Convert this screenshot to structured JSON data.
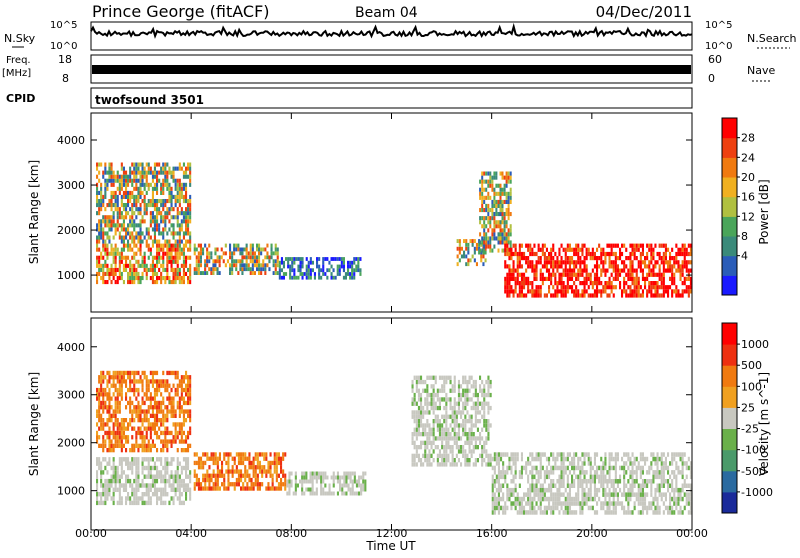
{
  "header": {
    "station": "Prince George (fitACF)",
    "beam": "Beam 04",
    "date": "04/Dec/2011"
  },
  "strip_labels": {
    "nsky": "N.Sky",
    "nsky_ticks": [
      "10^5",
      "10^0"
    ],
    "nsearch": "N.Search",
    "freq": "Freq.",
    "freq_unit": "[MHz]",
    "freq_ticks": [
      "18",
      "8"
    ],
    "nave": "Nave",
    "nave_ticks": [
      "60",
      "0"
    ],
    "cpid": "CPID",
    "cpid_value": "twofsound 3501"
  },
  "time_axis": {
    "label": "Time UT",
    "ticks": [
      "00:00",
      "04:00",
      "08:00",
      "12:00",
      "16:00",
      "20:00",
      "00:00"
    ]
  },
  "chart_data": [
    {
      "type": "heatmap",
      "name": "power",
      "xlabel": "Time UT",
      "ylabel": "Slant Range [km]",
      "xlim": [
        0,
        24
      ],
      "ylim": [
        180,
        4600
      ],
      "yticks": [
        "1000",
        "2000",
        "3000",
        "4000"
      ],
      "colorbar": {
        "label": "Power [dB]",
        "ticks": [
          "28",
          "24",
          "20",
          "16",
          "12",
          "8",
          "4"
        ],
        "colors": [
          "#1a1aff",
          "#2a5cb8",
          "#3a8a7a",
          "#4aa55a",
          "#b0c040",
          "#f0b020",
          "#f07a10",
          "#ee4010",
          "#ff0000"
        ]
      },
      "echo_regions": [
        {
          "t": [
            0.2,
            4.0
          ],
          "r": [
            800,
            1700
          ],
          "level": "high"
        },
        {
          "t": [
            0.2,
            4.0
          ],
          "r": [
            1700,
            3500
          ],
          "level": "medium"
        },
        {
          "t": [
            4.1,
            7.5
          ],
          "r": [
            1000,
            1700
          ],
          "level": "medium"
        },
        {
          "t": [
            7.5,
            10.8
          ],
          "r": [
            900,
            1400
          ],
          "level": "low"
        },
        {
          "t": [
            14.6,
            15.8
          ],
          "r": [
            1200,
            1800
          ],
          "level": "medium"
        },
        {
          "t": [
            15.5,
            16.8
          ],
          "r": [
            1500,
            3300
          ],
          "level": "medium"
        },
        {
          "t": [
            16.5,
            24.0
          ],
          "r": [
            500,
            1700
          ],
          "level": "very_high"
        }
      ]
    },
    {
      "type": "heatmap",
      "name": "velocity",
      "xlabel": "Time UT",
      "ylabel": "Slant Range [km]",
      "xlim": [
        0,
        24
      ],
      "ylim": [
        180,
        4600
      ],
      "yticks": [
        "1000",
        "2000",
        "3000",
        "4000"
      ],
      "colorbar": {
        "label": "Velocity [m s^-1]",
        "ticks": [
          "1000",
          "500",
          "100",
          "25",
          "-25",
          "-100",
          "-500",
          "-1000"
        ],
        "colors": [
          "#1a2a9a",
          "#2a6aa0",
          "#4a9a6a",
          "#6ab04a",
          "#c8c8c0",
          "#f0a020",
          "#f07a10",
          "#ee3010",
          "#ff0000"
        ]
      },
      "echo_regions": [
        {
          "t": [
            0.2,
            4.0
          ],
          "r": [
            700,
            1700
          ],
          "class": "ground"
        },
        {
          "t": [
            0.2,
            4.0
          ],
          "r": [
            1800,
            3500
          ],
          "class": "negative"
        },
        {
          "t": [
            4.1,
            7.8
          ],
          "r": [
            1000,
            1800
          ],
          "class": "negative"
        },
        {
          "t": [
            7.8,
            11.0
          ],
          "r": [
            900,
            1400
          ],
          "class": "ground"
        },
        {
          "t": [
            12.8,
            16.0
          ],
          "r": [
            1500,
            3400
          ],
          "class": "ground"
        },
        {
          "t": [
            16.0,
            24.0
          ],
          "r": [
            500,
            1800
          ],
          "class": "ground"
        }
      ]
    }
  ]
}
